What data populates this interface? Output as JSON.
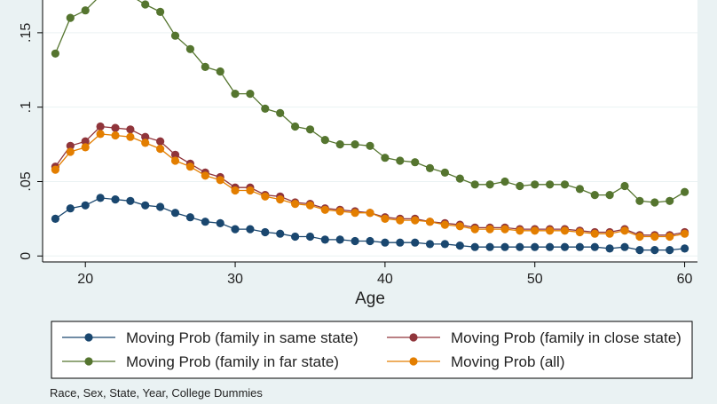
{
  "chart_data": {
    "type": "line",
    "xlabel": "Age",
    "ylabel": "",
    "xlim": [
      17.5,
      60.5
    ],
    "ylim": [
      -0.004,
      0.172
    ],
    "x_ticks": [
      20,
      30,
      40,
      50,
      60
    ],
    "y_ticks": [
      {
        "value": 0,
        "label": "0"
      },
      {
        "value": 0.05,
        "label": ".05"
      },
      {
        "value": 0.1,
        "label": ".1"
      },
      {
        "value": 0.15,
        "label": ".15"
      }
    ],
    "grid": true,
    "x": [
      18,
      19,
      20,
      21,
      22,
      23,
      24,
      25,
      26,
      27,
      28,
      29,
      30,
      31,
      32,
      33,
      34,
      35,
      36,
      37,
      38,
      39,
      40,
      41,
      42,
      43,
      44,
      45,
      46,
      47,
      48,
      49,
      50,
      51,
      52,
      53,
      54,
      55,
      56,
      57,
      58,
      59,
      60
    ],
    "series": [
      {
        "name": "Moving Prob (family in same state)",
        "color": "#1a476f",
        "values": [
          0.025,
          0.032,
          0.034,
          0.039,
          0.038,
          0.037,
          0.034,
          0.033,
          0.029,
          0.026,
          0.023,
          0.022,
          0.018,
          0.018,
          0.016,
          0.015,
          0.013,
          0.013,
          0.011,
          0.011,
          0.01,
          0.01,
          0.009,
          0.009,
          0.009,
          0.008,
          0.008,
          0.007,
          0.006,
          0.006,
          0.006,
          0.006,
          0.006,
          0.006,
          0.006,
          0.006,
          0.006,
          0.005,
          0.006,
          0.004,
          0.004,
          0.004,
          0.005
        ]
      },
      {
        "name": "Moving Prob (family in close state)",
        "color": "#90353b",
        "values": [
          0.06,
          0.074,
          0.077,
          0.087,
          0.086,
          0.085,
          0.08,
          0.077,
          0.068,
          0.062,
          0.056,
          0.053,
          0.046,
          0.046,
          0.041,
          0.04,
          0.036,
          0.035,
          0.032,
          0.031,
          0.03,
          0.029,
          0.026,
          0.025,
          0.025,
          0.023,
          0.022,
          0.021,
          0.019,
          0.019,
          0.019,
          0.018,
          0.018,
          0.018,
          0.018,
          0.017,
          0.016,
          0.016,
          0.018,
          0.014,
          0.014,
          0.014,
          0.016
        ]
      },
      {
        "name": "Moving Prob (family in far state)",
        "color": "#55752f",
        "values": [
          0.136,
          0.16,
          0.165,
          0.175,
          0.178,
          0.175,
          0.169,
          0.164,
          0.148,
          0.139,
          0.127,
          0.124,
          0.109,
          0.109,
          0.099,
          0.096,
          0.087,
          0.085,
          0.078,
          0.075,
          0.075,
          0.074,
          0.066,
          0.064,
          0.063,
          0.059,
          0.056,
          0.052,
          0.048,
          0.048,
          0.05,
          0.047,
          0.048,
          0.048,
          0.048,
          0.045,
          0.041,
          0.041,
          0.047,
          0.037,
          0.036,
          0.037,
          0.043
        ]
      },
      {
        "name": "Moving Prob (all)",
        "color": "#e37e00",
        "values": [
          0.058,
          0.07,
          0.073,
          0.082,
          0.081,
          0.08,
          0.076,
          0.072,
          0.064,
          0.06,
          0.054,
          0.051,
          0.044,
          0.044,
          0.04,
          0.038,
          0.035,
          0.034,
          0.031,
          0.03,
          0.029,
          0.029,
          0.025,
          0.024,
          0.024,
          0.023,
          0.021,
          0.02,
          0.018,
          0.018,
          0.018,
          0.017,
          0.017,
          0.017,
          0.017,
          0.016,
          0.015,
          0.015,
          0.017,
          0.013,
          0.013,
          0.013,
          0.015
        ]
      }
    ],
    "legend": {
      "placement": "bottom",
      "columns": 2,
      "order": [
        0,
        1,
        2,
        3
      ]
    },
    "note": "Race, Sex, State, Year, College Dummies"
  }
}
